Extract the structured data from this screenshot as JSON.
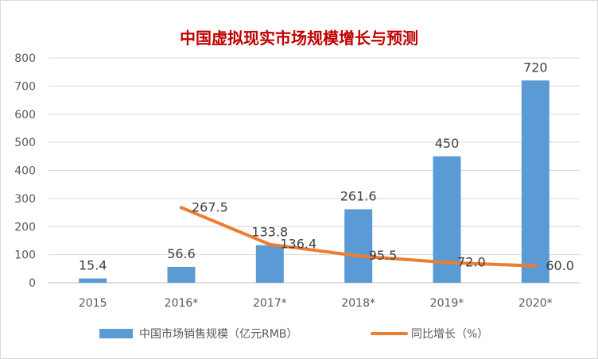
{
  "chart_data": {
    "type": "bar",
    "title": "中国虚拟现实市场规模增长与预测",
    "categories": [
      "2015",
      "2016*",
      "2017*",
      "2018*",
      "2019*",
      "2020*"
    ],
    "ylim": [
      0,
      800
    ],
    "yticks": [
      0,
      100,
      200,
      300,
      400,
      500,
      600,
      700,
      800
    ],
    "grid": true,
    "legend_position": "bottom",
    "series": [
      {
        "name": "中国市场销售规模（亿元RMB）",
        "type": "bar",
        "color": "#5b9bd5",
        "values": [
          15.4,
          56.6,
          133.8,
          261.6,
          450,
          720
        ],
        "labels": [
          "15.4",
          "56.6",
          "133.8",
          "261.6",
          "450",
          "720"
        ]
      },
      {
        "name": "同比增长（%）",
        "type": "line",
        "color": "#ed7d31",
        "values": [
          null,
          267.5,
          136.4,
          95.5,
          72.0,
          60.0
        ],
        "labels": [
          "",
          "267.5",
          "136.4",
          "95.5",
          "72.0",
          "60.0"
        ]
      }
    ]
  }
}
